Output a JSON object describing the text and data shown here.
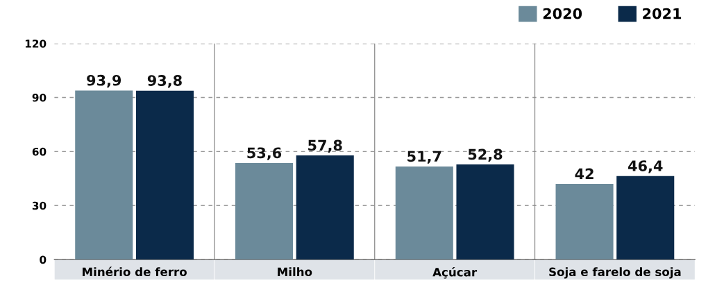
{
  "chart_data": {
    "type": "bar",
    "categories": [
      "Minério de ferro",
      "Milho",
      "Açúcar",
      "Soja e farelo de soja"
    ],
    "series": [
      {
        "name": "2020",
        "color": "#6b8a9a",
        "values": [
          93.9,
          53.6,
          51.7,
          42
        ],
        "value_labels": [
          "93,9",
          "53,6",
          "51,7",
          "42"
        ]
      },
      {
        "name": "2021",
        "color": "#0b2a4a",
        "values": [
          93.8,
          57.8,
          52.8,
          46.4
        ],
        "value_labels": [
          "93,8",
          "57,8",
          "52,8",
          "46,4"
        ]
      }
    ],
    "ylim": [
      0,
      120
    ],
    "yticks": [
      0,
      30,
      60,
      90,
      120
    ],
    "grid": "y",
    "legend": "top right"
  }
}
